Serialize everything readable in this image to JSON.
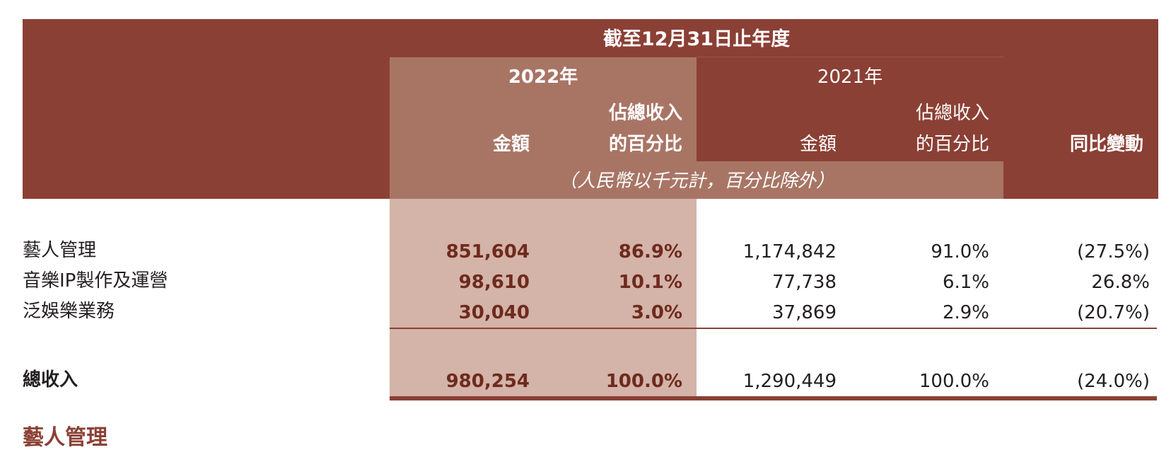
{
  "header": {
    "period": "截至12月31日止年度",
    "year_current": "2022年",
    "year_prior": "2021年",
    "col_amount": "金額",
    "col_pct_line1": "佔總收入",
    "col_pct_line2": "的百分比",
    "col_change": "同比變動",
    "unit_note": "（人民幣以千元計，百分比除外）"
  },
  "rows": [
    {
      "label": "藝人管理",
      "amt_2022": "851,604",
      "pct_2022": "86.9%",
      "amt_2021": "1,174,842",
      "pct_2021": "91.0%",
      "change": "(27.5%)"
    },
    {
      "label": "音樂IP製作及運營",
      "amt_2022": "98,610",
      "pct_2022": "10.1%",
      "amt_2021": "77,738",
      "pct_2021": "6.1%",
      "change": "26.8%"
    },
    {
      "label": "泛娛樂業務",
      "amt_2022": "30,040",
      "pct_2022": "3.0%",
      "amt_2021": "37,869",
      "pct_2021": "2.9%",
      "change": "(20.7%)"
    }
  ],
  "total": {
    "label": "總收入",
    "amt_2022": "980,254",
    "pct_2022": "100.0%",
    "amt_2021": "1,290,449",
    "pct_2021": "100.0%",
    "change": "(24.0%)"
  },
  "next_heading": "藝人管理",
  "colors": {
    "header_dark": "#8b4035",
    "header_light": "#a87565",
    "highlight_column": "#d4b3a8",
    "value_2022": "#6e2a1e"
  }
}
